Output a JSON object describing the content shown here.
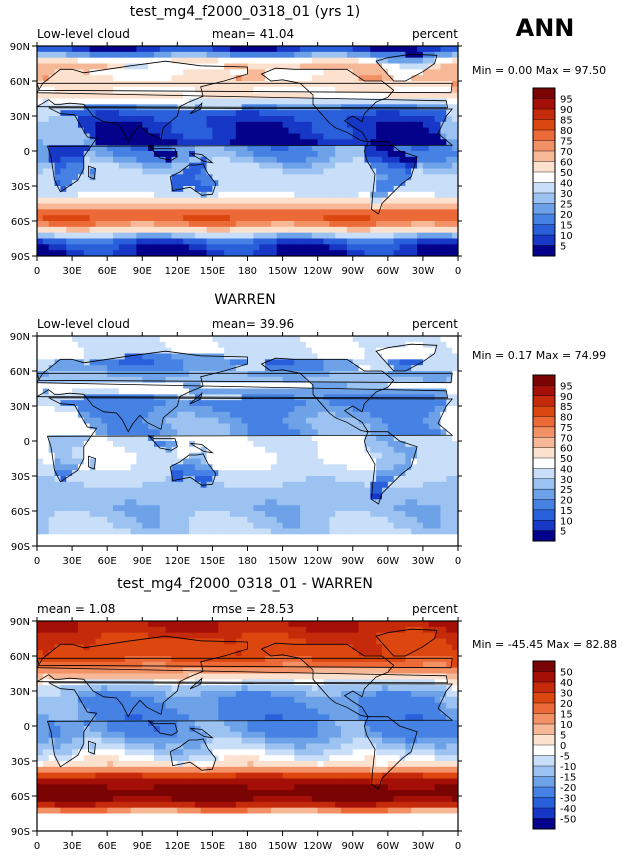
{
  "header": {
    "season": "ANN"
  },
  "chart_data": [
    {
      "type": "heatmap",
      "title": "test_mg4_f2000_0318_01 (yrs 1)",
      "left_label": "Low-level cloud",
      "center_label": "mean=  41.04",
      "right_label": "percent",
      "stats_label": "Min =    0.00 Max =   97.50",
      "min": 0.0,
      "max": 97.5,
      "mean": 41.04,
      "xlim": [
        0,
        360
      ],
      "ylim": [
        -90,
        90
      ],
      "x_ticks": [
        "0",
        "30E",
        "60E",
        "90E",
        "120E",
        "150E",
        "180",
        "150W",
        "120W",
        "90W",
        "60W",
        "30W",
        "0"
      ],
      "y_ticks": [
        "90N",
        "60N",
        "30N",
        "0",
        "30S",
        "60S",
        "90S"
      ],
      "colorbar": [
        "95",
        "90",
        "85",
        "80",
        "75",
        "70",
        "60",
        "50",
        "40",
        "30",
        "25",
        "20",
        "15",
        "10",
        "5"
      ],
      "colors": [
        "#7a0403",
        "#a40f07",
        "#c52a0b",
        "#dc460f",
        "#ec6a37",
        "#f29066",
        "#f7b898",
        "#fde1cf",
        "#ffffff",
        "#c9def8",
        "#9cc2f1",
        "#6ea2e8",
        "#4681e4",
        "#2a5fdb",
        "#1737c6",
        "#04018a"
      ],
      "zonal_mean": [
        {
          "lat": 85,
          "v": 8
        },
        {
          "lat": 75,
          "v": 60
        },
        {
          "lat": 65,
          "v": 68
        },
        {
          "lat": 55,
          "v": 72
        },
        {
          "lat": 45,
          "v": 55
        },
        {
          "lat": 35,
          "v": 32
        },
        {
          "lat": 25,
          "v": 25
        },
        {
          "lat": 15,
          "v": 25
        },
        {
          "lat": 5,
          "v": 20
        },
        {
          "lat": -5,
          "v": 22
        },
        {
          "lat": -15,
          "v": 32
        },
        {
          "lat": -25,
          "v": 35
        },
        {
          "lat": -35,
          "v": 32
        },
        {
          "lat": -45,
          "v": 65
        },
        {
          "lat": -55,
          "v": 82
        },
        {
          "lat": -65,
          "v": 70
        },
        {
          "lat": -75,
          "v": 15
        },
        {
          "lat": -85,
          "v": 5
        }
      ]
    },
    {
      "type": "heatmap",
      "title": "WARREN",
      "left_label": "Low-level cloud",
      "center_label": "mean=  39.96",
      "right_label": "percent",
      "stats_label": "Min =    0.17 Max =   74.99",
      "min": 0.17,
      "max": 74.99,
      "mean": 39.96,
      "xlim": [
        0,
        360
      ],
      "ylim": [
        -90,
        90
      ],
      "x_ticks": [
        "0",
        "30E",
        "60E",
        "90E",
        "120E",
        "150E",
        "180",
        "150W",
        "120W",
        "90W",
        "60W",
        "30W",
        "0"
      ],
      "y_ticks": [
        "90N",
        "60N",
        "30N",
        "0",
        "30S",
        "60S",
        "90S"
      ],
      "colorbar": [
        "95",
        "90",
        "85",
        "80",
        "75",
        "70",
        "60",
        "50",
        "40",
        "30",
        "25",
        "20",
        "15",
        "10",
        "5"
      ],
      "colors": [
        "#7a0403",
        "#a40f07",
        "#c52a0b",
        "#dc460f",
        "#ec6a37",
        "#f29066",
        "#f7b898",
        "#fde1cf",
        "#ffffff",
        "#c9def8",
        "#9cc2f1",
        "#6ea2e8",
        "#4681e4",
        "#2a5fdb",
        "#1737c6",
        "#04018a"
      ],
      "zonal_mean": [
        {
          "lat": 85,
          "v": 38
        },
        {
          "lat": 75,
          "v": 38
        },
        {
          "lat": 65,
          "v": 35
        },
        {
          "lat": 55,
          "v": 45
        },
        {
          "lat": 45,
          "v": 42
        },
        {
          "lat": 35,
          "v": 35
        },
        {
          "lat": 25,
          "v": 38
        },
        {
          "lat": 15,
          "v": 42
        },
        {
          "lat": 5,
          "v": 40
        },
        {
          "lat": -5,
          "v": 42
        },
        {
          "lat": -15,
          "v": 44
        },
        {
          "lat": -25,
          "v": 38
        },
        {
          "lat": -35,
          "v": 30
        },
        {
          "lat": -45,
          "v": 28
        },
        {
          "lat": -55,
          "v": 26
        },
        {
          "lat": -65,
          "v": 28
        },
        {
          "lat": -75,
          "v": 30
        },
        {
          "lat": -85,
          "v": 35
        }
      ]
    },
    {
      "type": "heatmap",
      "title": "test_mg4_f2000_0318_01 - WARREN",
      "left_label": "mean =    1.08",
      "center_label": "rmse =  28.53",
      "right_label": "percent",
      "stats_label": "Min = -45.45 Max =  82.88",
      "min": -45.45,
      "max": 82.88,
      "mean": 1.08,
      "rmse": 28.53,
      "xlim": [
        0,
        360
      ],
      "ylim": [
        -90,
        90
      ],
      "x_ticks": [
        "0",
        "30E",
        "60E",
        "90E",
        "120E",
        "150E",
        "180",
        "150W",
        "120W",
        "90W",
        "60W",
        "30W",
        "0"
      ],
      "y_ticks": [
        "90N",
        "60N",
        "30N",
        "0",
        "30S",
        "60S",
        "90S"
      ],
      "colorbar": [
        "50",
        "40",
        "30",
        "20",
        "15",
        "10",
        "5",
        "0",
        "-5",
        "-10",
        "-15",
        "-20",
        "-30",
        "-40",
        "-50"
      ],
      "colors": [
        "#7a0403",
        "#a40f07",
        "#c52a0b",
        "#dc460f",
        "#ec6a37",
        "#f29066",
        "#f7b898",
        "#fde1cf",
        "#ffffff",
        "#c9def8",
        "#9cc2f1",
        "#6ea2e8",
        "#4681e4",
        "#2a5fdb",
        "#1737c6",
        "#04018a"
      ],
      "zonal_mean": [
        {
          "lat": 85,
          "v": 40
        },
        {
          "lat": 75,
          "v": 30
        },
        {
          "lat": 65,
          "v": 30
        },
        {
          "lat": 55,
          "v": 25
        },
        {
          "lat": 45,
          "v": 10
        },
        {
          "lat": 35,
          "v": -5
        },
        {
          "lat": 25,
          "v": -15
        },
        {
          "lat": 15,
          "v": -18
        },
        {
          "lat": 5,
          "v": -20
        },
        {
          "lat": -5,
          "v": -20
        },
        {
          "lat": -15,
          "v": -12
        },
        {
          "lat": -25,
          "v": -5
        },
        {
          "lat": -35,
          "v": 5
        },
        {
          "lat": -45,
          "v": 38
        },
        {
          "lat": -55,
          "v": 55
        },
        {
          "lat": -65,
          "v": 50
        },
        {
          "lat": -75,
          "v": 0
        },
        {
          "lat": -85,
          "v": 0
        }
      ]
    }
  ]
}
